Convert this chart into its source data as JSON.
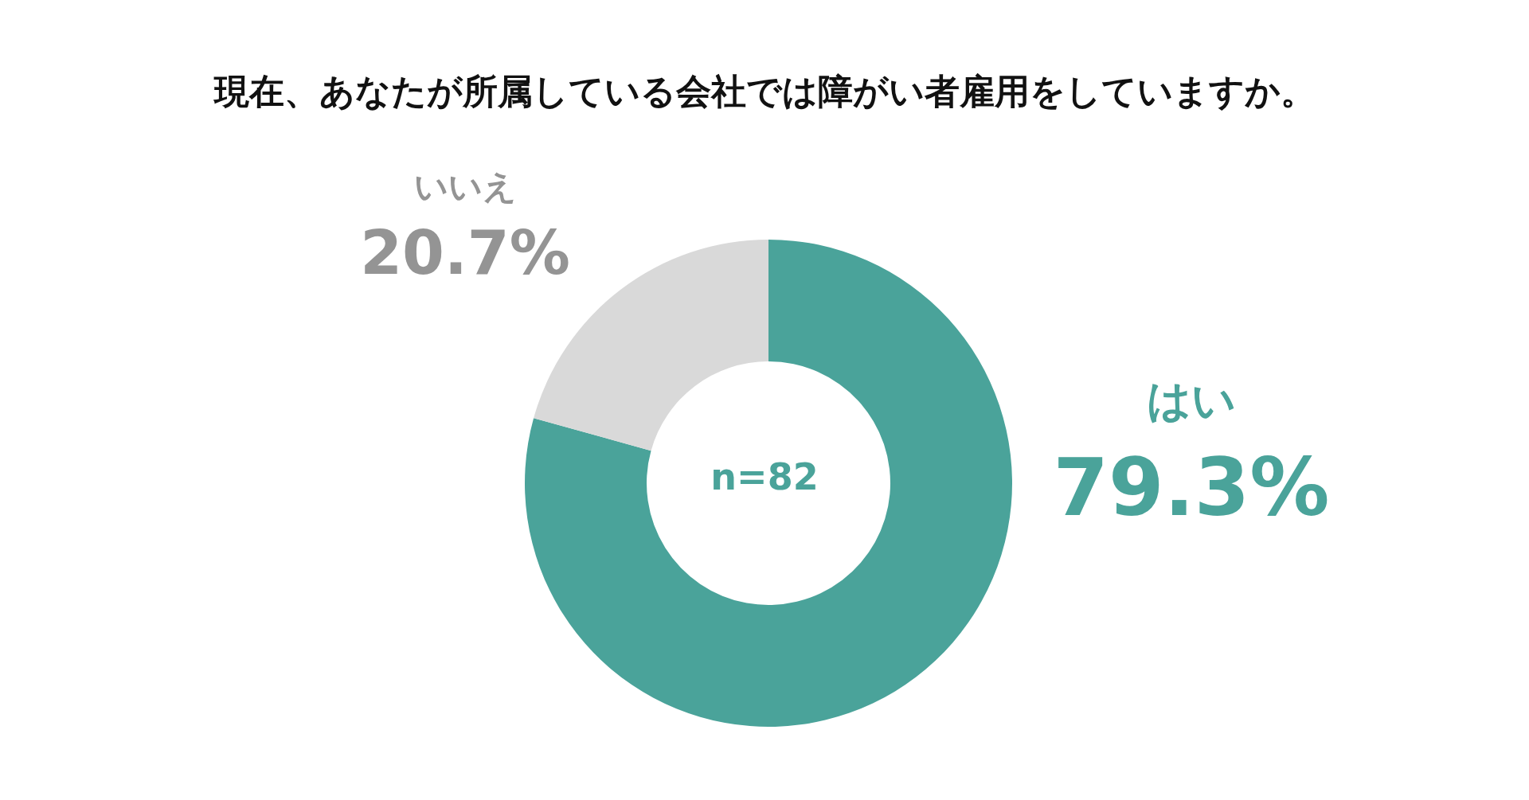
{
  "chart_data": {
    "type": "donut",
    "title": "現在、あなたが所属している会社では障がい者雇用をしていますか。",
    "categories": [
      "はい",
      "いいえ"
    ],
    "values": [
      79.3,
      20.7
    ],
    "value_labels": [
      "79.3%",
      "20.7%"
    ],
    "colors": [
      "#4aa39a",
      "#d9d9d9"
    ],
    "annotations": [
      "n=82"
    ],
    "legend": false
  }
}
